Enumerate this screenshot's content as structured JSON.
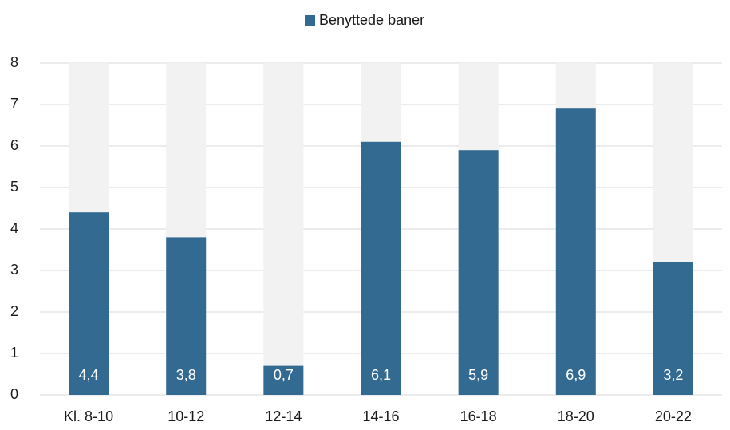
{
  "chart_data": {
    "type": "bar",
    "categories": [
      "Kl. 8-10",
      "10-12",
      "12-14",
      "14-16",
      "16-18",
      "18-20",
      "20-22"
    ],
    "series": [
      {
        "name": "Benyttede baner",
        "color": "#336a91",
        "values": [
          4.4,
          3.8,
          0.7,
          6.1,
          5.9,
          6.9,
          3.2
        ],
        "value_labels": [
          "4,4",
          "3,8",
          "0,7",
          "6,1",
          "5,9",
          "6,9",
          "3,2"
        ]
      },
      {
        "color": "#f2f2f2",
        "values": [
          8,
          8,
          8,
          8,
          8,
          8,
          8
        ]
      }
    ],
    "ylim": [
      0,
      8
    ],
    "yticks": [
      0,
      1,
      2,
      3,
      4,
      5,
      6,
      7,
      8
    ],
    "grid": true,
    "legend": "top"
  }
}
